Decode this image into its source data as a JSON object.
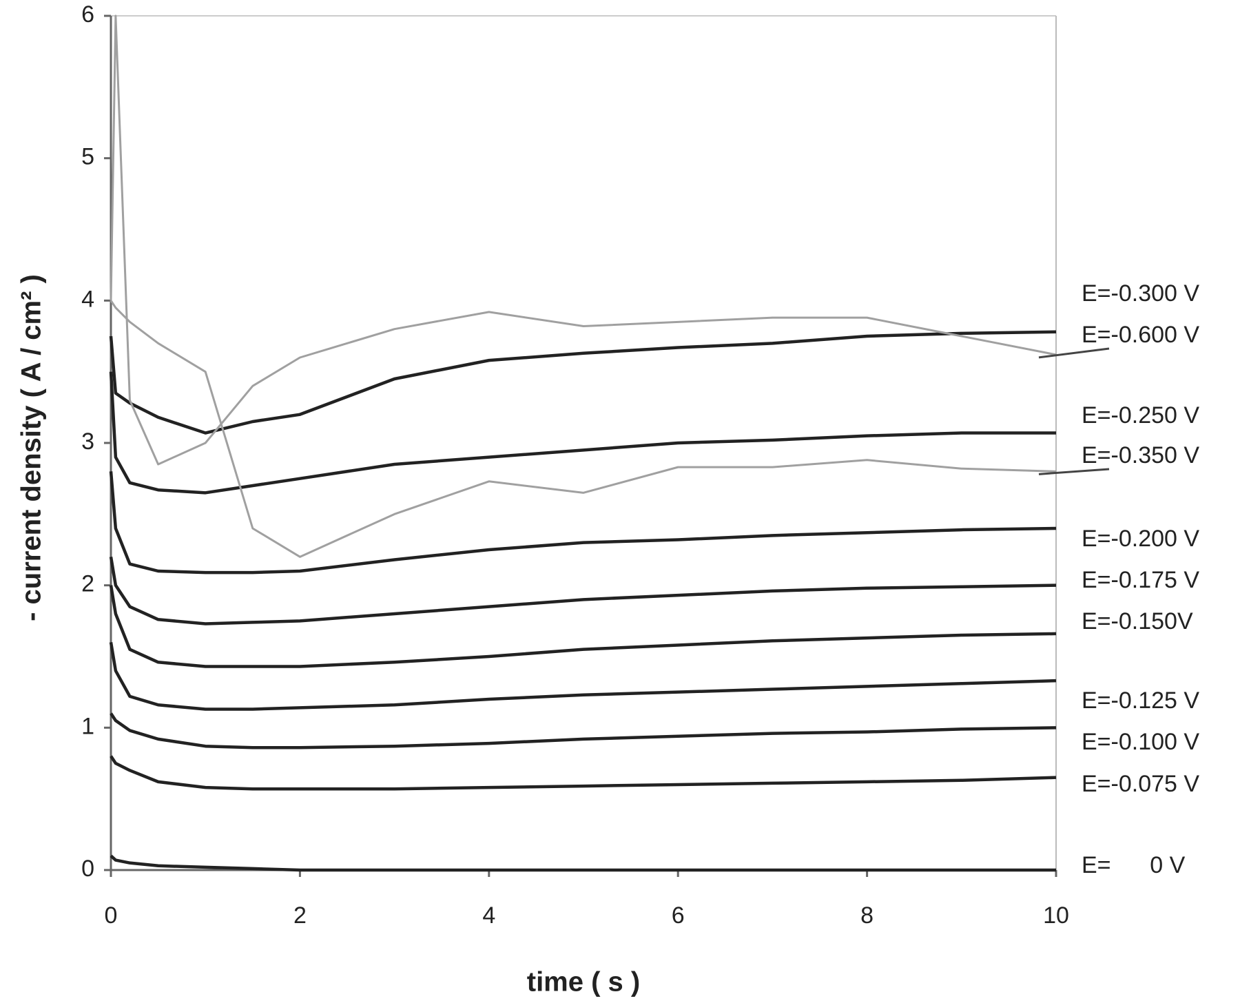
{
  "chart_data": {
    "type": "line",
    "x_label": "time ( s )",
    "y_label": "- current density ( A / cm² )",
    "x": [
      0,
      0.05,
      0.2,
      0.5,
      1,
      1.5,
      2,
      3,
      4,
      5,
      6,
      7,
      8,
      9,
      10
    ],
    "xlim": [
      0,
      10
    ],
    "xticks": [
      0,
      2,
      4,
      6,
      8,
      10
    ],
    "ylim": [
      0,
      6
    ],
    "yticks": [
      0,
      1,
      2,
      3,
      4,
      5,
      6
    ],
    "grid": false,
    "series": [
      {
        "name": "E=-0.300 V",
        "color": "#222222",
        "values": [
          3.75,
          3.35,
          3.28,
          3.18,
          3.07,
          3.15,
          3.2,
          3.45,
          3.58,
          3.63,
          3.67,
          3.7,
          3.75,
          3.77,
          3.78
        ]
      },
      {
        "name": "E=-0.600 V",
        "color": "#a0a0a0",
        "values": [
          4.0,
          6.0,
          3.3,
          2.85,
          3.0,
          3.4,
          3.6,
          3.8,
          3.92,
          3.82,
          3.85,
          3.88,
          3.88,
          3.75,
          3.62
        ]
      },
      {
        "name": "E=-0.250 V",
        "color": "#222222",
        "values": [
          3.5,
          2.9,
          2.72,
          2.67,
          2.65,
          2.7,
          2.75,
          2.85,
          2.9,
          2.95,
          3.0,
          3.02,
          3.05,
          3.07,
          3.07
        ]
      },
      {
        "name": "E=-0.350 V",
        "color": "#a0a0a0",
        "values": [
          4.0,
          3.95,
          3.85,
          3.7,
          3.5,
          2.4,
          2.2,
          2.5,
          2.73,
          2.65,
          2.83,
          2.83,
          2.88,
          2.82,
          2.8
        ]
      },
      {
        "name": "E=-0.200 V",
        "color": "#222222",
        "values": [
          2.8,
          2.4,
          2.15,
          2.1,
          2.09,
          2.09,
          2.1,
          2.18,
          2.25,
          2.3,
          2.32,
          2.35,
          2.37,
          2.39,
          2.4
        ]
      },
      {
        "name": "E=-0.175 V",
        "color": "#222222",
        "values": [
          2.2,
          2.0,
          1.85,
          1.76,
          1.73,
          1.74,
          1.75,
          1.8,
          1.85,
          1.9,
          1.93,
          1.96,
          1.98,
          1.99,
          2.0
        ]
      },
      {
        "name": "E=-0.150V",
        "color": "#222222",
        "values": [
          2.0,
          1.8,
          1.55,
          1.46,
          1.43,
          1.43,
          1.43,
          1.46,
          1.5,
          1.55,
          1.58,
          1.61,
          1.63,
          1.65,
          1.66
        ]
      },
      {
        "name": "E=-0.125 V",
        "color": "#222222",
        "values": [
          1.6,
          1.4,
          1.22,
          1.16,
          1.13,
          1.13,
          1.14,
          1.16,
          1.2,
          1.23,
          1.25,
          1.27,
          1.29,
          1.31,
          1.33
        ]
      },
      {
        "name": "E=-0.100 V",
        "color": "#222222",
        "values": [
          1.1,
          1.05,
          0.98,
          0.92,
          0.87,
          0.86,
          0.86,
          0.87,
          0.89,
          0.92,
          0.94,
          0.96,
          0.97,
          0.99,
          1.0
        ]
      },
      {
        "name": "E=-0.075 V",
        "color": "#222222",
        "values": [
          0.8,
          0.75,
          0.7,
          0.62,
          0.58,
          0.57,
          0.57,
          0.57,
          0.58,
          0.59,
          0.6,
          0.61,
          0.62,
          0.63,
          0.65
        ]
      },
      {
        "name": "E=      0 V",
        "color": "#222222",
        "values": [
          0.1,
          0.07,
          0.05,
          0.03,
          0.02,
          0.01,
          0,
          0,
          0,
          0,
          0,
          0,
          0,
          0,
          0
        ]
      }
    ]
  }
}
